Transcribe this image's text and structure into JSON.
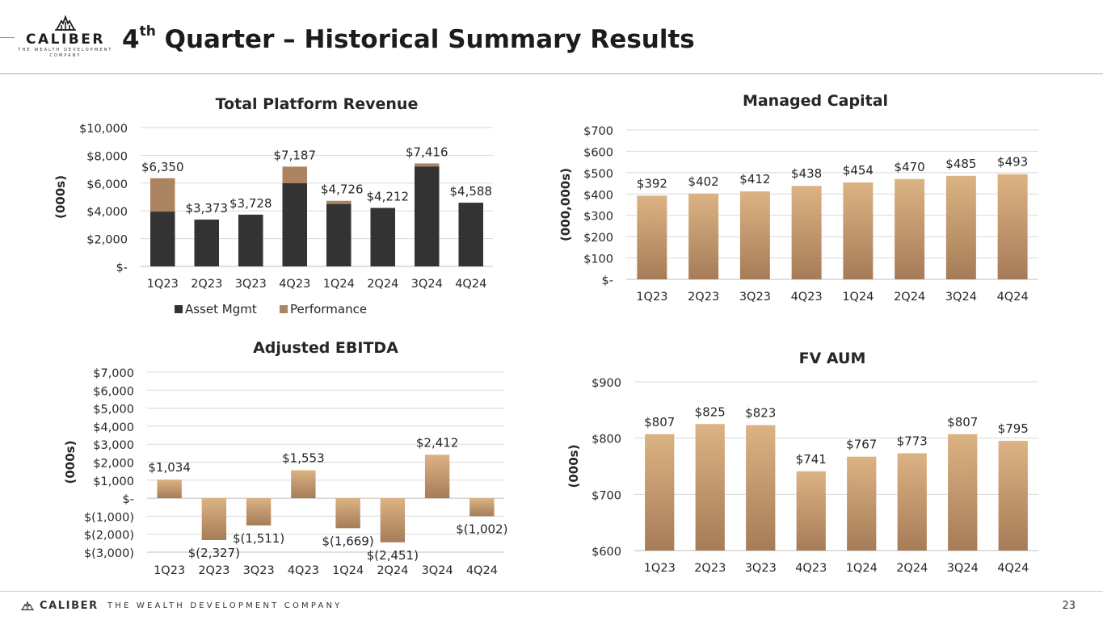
{
  "header": {
    "brand": "CALIBER",
    "brand_tagline": "THE WEALTH DEVELOPMENT COMPANY",
    "title_prefix": "4",
    "title_sup": "th",
    "title_rest": " Quarter – Historical Summary Results"
  },
  "footer": {
    "brand": "CALIBER",
    "tagline": "THE WEALTH DEVELOPMENT COMPANY",
    "page_number": "23"
  },
  "colors": {
    "asset_mgmt": "#333333",
    "performance": "#ad8462",
    "gold_top": "#dcb383",
    "gold_bottom": "#a67c58",
    "grid": "#d9d9d9",
    "axis": "#bfbfbf",
    "text": "#262626"
  },
  "chart_data": [
    {
      "id": "revenue",
      "type": "bar",
      "stacked": true,
      "title": "Total Platform Revenue",
      "ylabel": "(000s)",
      "xlabel": "",
      "categories": [
        "1Q23",
        "2Q23",
        "3Q23",
        "4Q23",
        "1Q24",
        "2Q24",
        "3Q24",
        "4Q24"
      ],
      "series": [
        {
          "name": "Asset Mgmt",
          "values": [
            3950,
            3373,
            3728,
            6000,
            4500,
            4212,
            7200,
            4588
          ]
        },
        {
          "name": "Performance",
          "values": [
            2400,
            0,
            0,
            1187,
            226,
            0,
            216,
            0
          ]
        }
      ],
      "totals": [
        6350,
        3373,
        3728,
        7187,
        4726,
        4212,
        7416,
        4588
      ],
      "data_labels": [
        "$6,350",
        "$3,373",
        "$3,728",
        "$7,187",
        "$4,726",
        "$4,212",
        "$7,416",
        "$4,588"
      ],
      "ylim": [
        0,
        10000
      ],
      "yticks": [
        0,
        2000,
        4000,
        6000,
        8000,
        10000
      ],
      "ytick_labels": [
        "$-",
        "$2,000",
        "$4,000",
        "$6,000",
        "$8,000",
        "$10,000"
      ],
      "legend": "bottom",
      "grid": true
    },
    {
      "id": "managed",
      "type": "bar",
      "title": "Managed Capital",
      "ylabel": "(000,000s)",
      "xlabel": "",
      "categories": [
        "1Q23",
        "2Q23",
        "3Q23",
        "4Q23",
        "1Q24",
        "2Q24",
        "3Q24",
        "4Q24"
      ],
      "values": [
        392,
        402,
        412,
        438,
        454,
        470,
        485,
        493
      ],
      "data_labels": [
        "$392",
        "$402",
        "$412",
        "$438",
        "$454",
        "$470",
        "$485",
        "$493"
      ],
      "ylim": [
        0,
        700
      ],
      "yticks": [
        0,
        100,
        200,
        300,
        400,
        500,
        600,
        700
      ],
      "ytick_labels": [
        "$-",
        "$100",
        "$200",
        "$300",
        "$400",
        "$500",
        "$600",
        "$700"
      ],
      "grid": true
    },
    {
      "id": "ebitda",
      "type": "bar",
      "title": "Adjusted EBITDA",
      "ylabel": "(000s)",
      "xlabel": "",
      "categories": [
        "1Q23",
        "2Q23",
        "3Q23",
        "4Q23",
        "1Q24",
        "2Q24",
        "3Q24",
        "4Q24"
      ],
      "values": [
        1034,
        -2327,
        -1511,
        1553,
        -1669,
        -2451,
        2412,
        -1002
      ],
      "data_labels": [
        "$1,034",
        "$(2,327)",
        "$(1,511)",
        "$1,553",
        "$(1,669)",
        "$(2,451)",
        "$2,412",
        "$(1,002)"
      ],
      "ylim": [
        -3000,
        7000
      ],
      "yticks": [
        -3000,
        -2000,
        -1000,
        0,
        1000,
        2000,
        3000,
        4000,
        5000,
        6000,
        7000
      ],
      "ytick_labels": [
        "$(3,000)",
        "$(2,000)",
        "$(1,000)",
        "$-",
        "$1,000",
        "$2,000",
        "$3,000",
        "$4,000",
        "$5,000",
        "$6,000",
        "$7,000"
      ],
      "grid": true
    },
    {
      "id": "aum",
      "type": "bar",
      "title": "FV AUM",
      "ylabel": "(000s)",
      "xlabel": "",
      "categories": [
        "1Q23",
        "2Q23",
        "3Q23",
        "4Q23",
        "1Q24",
        "2Q24",
        "3Q24",
        "4Q24"
      ],
      "values": [
        807,
        825,
        823,
        741,
        767,
        773,
        807,
        795
      ],
      "data_labels": [
        "$807",
        "$825",
        "$823",
        "$741",
        "$767",
        "$773",
        "$807",
        "$795"
      ],
      "ylim": [
        600,
        900
      ],
      "yticks": [
        600,
        700,
        800,
        900
      ],
      "ytick_labels": [
        "$600",
        "$700",
        "$800",
        "$900"
      ],
      "grid": true
    }
  ]
}
